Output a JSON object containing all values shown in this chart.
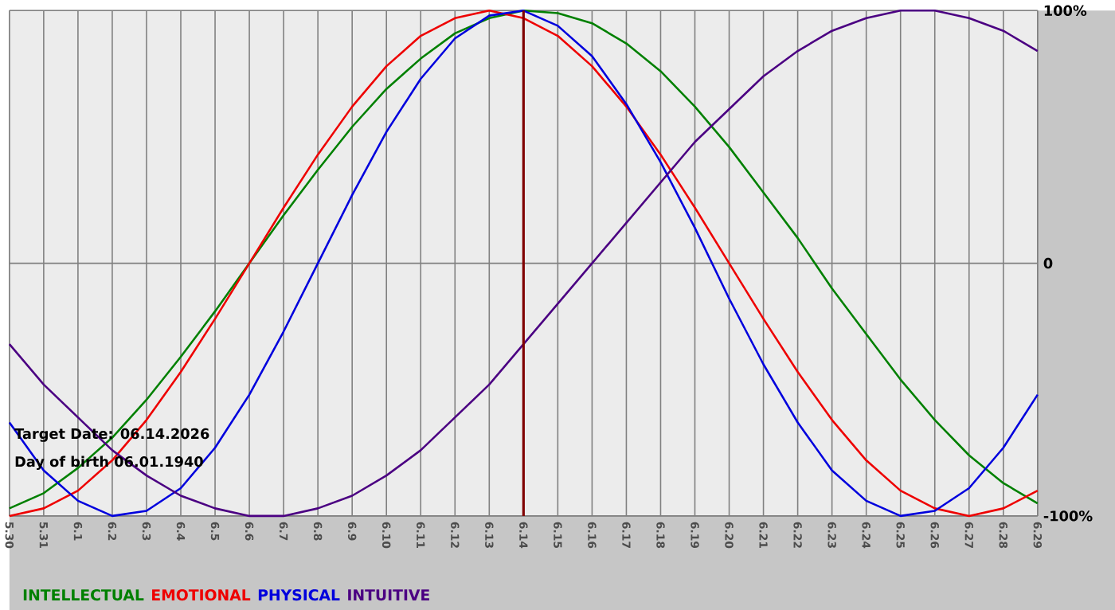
{
  "chart_data": {
    "type": "line",
    "categories": [
      "5.30",
      "5.31",
      "6.1",
      "6.2",
      "6.3",
      "6.4",
      "6.5",
      "6.6",
      "6.7",
      "6.8",
      "6.9",
      "6.10",
      "6.11",
      "6.12",
      "6.13",
      "6.14",
      "6.15",
      "6.16",
      "6.17",
      "6.18",
      "6.19",
      "6.20",
      "6.21",
      "6.22",
      "6.23",
      "6.24",
      "6.25",
      "6.26",
      "6.27",
      "6.28",
      "6.29"
    ],
    "series": [
      {
        "name": "INTELLECTUAL",
        "color": "#008000",
        "values": [
          -97,
          -91,
          -81,
          -69,
          -54,
          -37,
          -19,
          0,
          19,
          37,
          54,
          69,
          81,
          91,
          97,
          100,
          99,
          95,
          87,
          76,
          62,
          46,
          28,
          10,
          -10,
          -28,
          -46,
          -62,
          -76,
          -87,
          -95
        ]
      },
      {
        "name": "EMOTIONAL",
        "color": "#ee0000",
        "values": [
          -100,
          -97,
          -90,
          -78,
          -62,
          -43,
          -22,
          0,
          22,
          43,
          62,
          78,
          90,
          97,
          100,
          97,
          90,
          78,
          62,
          43,
          22,
          0,
          -22,
          -43,
          -62,
          -78,
          -90,
          -97,
          -100,
          -97,
          -90
        ]
      },
      {
        "name": "PHYSICAL",
        "color": "#0000dd",
        "values": [
          -63,
          -82,
          -94,
          -100,
          -98,
          -89,
          -73,
          -52,
          -27,
          0,
          27,
          52,
          73,
          89,
          98,
          100,
          94,
          82,
          63,
          40,
          14,
          -14,
          -40,
          -63,
          -82,
          -94,
          -100,
          -98,
          -89,
          -73,
          -52
        ]
      },
      {
        "name": "INTUITIVE",
        "color": "#4b0082",
        "values": [
          -32,
          -48,
          -61,
          -74,
          -84,
          -92,
          -97,
          -100,
          -100,
          -97,
          -92,
          -84,
          -74,
          -61,
          -48,
          -32,
          -16,
          0,
          16,
          32,
          48,
          61,
          74,
          84,
          92,
          97,
          100,
          100,
          97,
          92,
          84
        ]
      }
    ],
    "ylim": [
      -100,
      100
    ],
    "yticks": [
      {
        "value": -100,
        "label": "-100%"
      },
      0,
      {
        "value": 100,
        "label": "100%"
      }
    ],
    "grid": true,
    "legend": "bottom",
    "ref_lines": [
      {
        "axis": "x",
        "value": "6.14",
        "color": "#800000"
      }
    ],
    "annotations": [
      "Target Date: 06.14.2026",
      "Day of birth 06.01.1940"
    ]
  }
}
